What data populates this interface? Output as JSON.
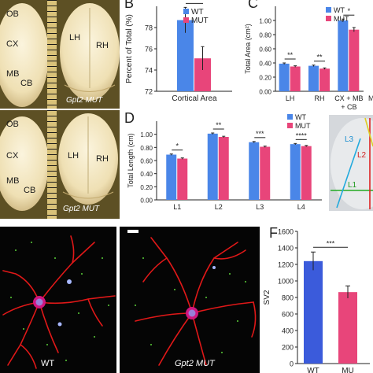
{
  "panelA": {
    "top_labels": [
      "OB",
      "CX",
      "MB",
      "CB"
    ],
    "top_right_labels": [
      "LH",
      "RH"
    ],
    "top_caption": "Gpt2 MUT",
    "bottom_labels": [
      "OB",
      "CX",
      "MB",
      "CB"
    ],
    "bottom_right_labels": [
      "LH",
      "RH"
    ],
    "bottom_caption": "Gpt2 MUT"
  },
  "panelB": {
    "letter": "B",
    "legend": [
      "WT",
      "MUT"
    ],
    "sig": "**",
    "chart_data": {
      "type": "bar",
      "categories": [
        "Cortical Area"
      ],
      "series": [
        {
          "name": "WT",
          "values": [
            78.7
          ],
          "err": [
            1.2
          ]
        },
        {
          "name": "MUT",
          "values": [
            75.1
          ],
          "err": [
            1.1
          ]
        }
      ],
      "ylabel": "Percent of Total (%)",
      "ylim": [
        72,
        80
      ],
      "yticks": [
        72,
        74,
        76,
        78
      ]
    }
  },
  "panelC": {
    "letter": "C",
    "legend": [
      "WT",
      "MUT"
    ],
    "sigs": [
      "**",
      "**",
      "*"
    ],
    "chart_data": {
      "type": "bar",
      "categories": [
        "LH",
        "RH",
        "CX + MB\n+ CB"
      ],
      "series": [
        {
          "name": "WT",
          "values": [
            0.39,
            0.36,
            1.0
          ],
          "err": [
            0.01,
            0.01,
            0.02
          ]
        },
        {
          "name": "MUT",
          "values": [
            0.35,
            0.32,
            0.87
          ],
          "err": [
            0.01,
            0.01,
            0.03
          ]
        }
      ],
      "ylabel": "Total Area (cm²)",
      "ylim": [
        0,
        1.2
      ],
      "yticks": [
        0,
        0.2,
        0.4,
        0.6,
        0.8,
        1.0
      ]
    },
    "ytick_labels": [
      "0.00",
      "0.20",
      "0.40",
      "0.60",
      "0.80",
      "1.00"
    ],
    "extra_label": "M"
  },
  "panelD": {
    "letter": "D",
    "legend": [
      "WT",
      "MUT"
    ],
    "sigs": [
      "*",
      "**",
      "***",
      "****"
    ],
    "chart_data": {
      "type": "bar",
      "categories": [
        "L1",
        "L2",
        "L3",
        "L4"
      ],
      "series": [
        {
          "name": "WT",
          "values": [
            0.69,
            1.01,
            0.88,
            0.85
          ],
          "err": [
            0.01,
            0.01,
            0.01,
            0.01
          ]
        },
        {
          "name": "MUT",
          "values": [
            0.63,
            0.96,
            0.81,
            0.82
          ],
          "err": [
            0.01,
            0.01,
            0.01,
            0.01
          ]
        }
      ],
      "ylabel": "Total Length (cm)",
      "ylim": [
        0,
        1.2
      ],
      "yticks": [
        0,
        0.2,
        0.4,
        0.6,
        0.8,
        1.0
      ]
    },
    "ytick_labels": [
      "0.00",
      "0.20",
      "0.40",
      "0.60",
      "0.80",
      "1.00"
    ],
    "inset_labels": [
      "L3",
      "L2",
      "L1"
    ]
  },
  "panelE": {
    "left_caption": "WT",
    "right_caption": "Gpt2 MUT"
  },
  "panelF": {
    "letter": "F",
    "sig": "***",
    "chart_data": {
      "type": "bar",
      "categories": [
        "WT",
        "MUT"
      ],
      "values": [
        1240,
        865
      ],
      "err": [
        110,
        75
      ],
      "ylabel": "SV2",
      "ylim": [
        0,
        1600
      ],
      "yticks": [
        0,
        200,
        400,
        600,
        800,
        1000,
        1200,
        1400,
        1600
      ]
    },
    "xtick_labels": [
      "WT",
      "MU"
    ]
  },
  "colors": {
    "wt": "#4a86e8",
    "mut": "#e8457a",
    "wt_dark": "#3b5bdb",
    "neuron": "#e02020",
    "brain_bg": "#6b5a2a"
  }
}
